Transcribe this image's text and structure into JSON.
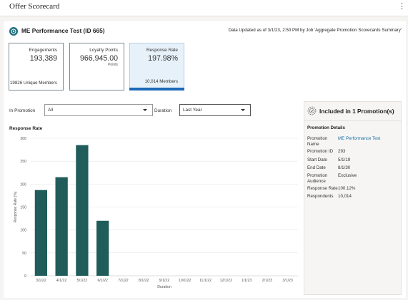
{
  "app": {
    "title": "Offer Scorecard"
  },
  "header": {
    "title": "ME Performance Test (ID 665)",
    "updated": "Data Updated as of 3/1/23, 2:50 PM by Job 'Aggregate Promotion Scorecards Summary'"
  },
  "tiles": [
    {
      "label": "Engagements",
      "value": "193,389",
      "unit": "",
      "footer": "19826 Unique Members",
      "selected": false
    },
    {
      "label": "Loyalty Points",
      "value": "966,945.00",
      "unit": "Points",
      "footer": "",
      "selected": false
    },
    {
      "label": "Response Rate",
      "value": "197.98%",
      "unit": "",
      "footer": "10,014 Members",
      "selected": true
    }
  ],
  "filters": {
    "promotion_label": "In Promotion",
    "promotion_value": "All",
    "duration_label": "Duration",
    "duration_value": "Last Year"
  },
  "chart_title": "Response Rate",
  "chart_data": {
    "type": "bar",
    "title": "Response Rate",
    "xlabel": "Duration",
    "ylabel": "Response Rate (%)",
    "categories": [
      "3/1/22",
      "4/1/22",
      "5/1/22",
      "6/1/22",
      "7/1/22",
      "8/1/22",
      "9/1/22",
      "10/1/22",
      "11/1/22",
      "12/1/22",
      "1/1/23",
      "2/1/23",
      "3/1/23"
    ],
    "values": [
      187,
      215,
      285,
      120,
      null,
      null,
      null,
      null,
      null,
      null,
      null,
      null,
      null
    ],
    "ylim": [
      0,
      300
    ],
    "yticks": [
      0,
      50,
      100,
      150,
      200,
      250,
      300
    ],
    "grid": true,
    "bar_color": "#1f5c5a"
  },
  "panel": {
    "title": "Included in 1 Promotion(s)",
    "section": "Promotion Details",
    "rows": [
      {
        "label": "Promotion Name",
        "value": "ME Performance Test",
        "link": true
      },
      {
        "label": "Promotion ID",
        "value": "293",
        "link": false
      },
      {
        "label": "Start Date",
        "value": "5/1/19",
        "link": false
      },
      {
        "label": "End Date",
        "value": "8/1/30",
        "link": false
      },
      {
        "label": "Promotion Audience",
        "value": "Exclusive",
        "link": false
      },
      {
        "label": "Response Rate",
        "value": "100.12%",
        "link": false
      },
      {
        "label": "Respondents",
        "value": "10,014",
        "link": false
      }
    ]
  },
  "colors": {
    "accent": "#1c68b8",
    "brand": "#1e6f80",
    "bar": "#1f5c5a",
    "link": "#1d6fa5"
  }
}
